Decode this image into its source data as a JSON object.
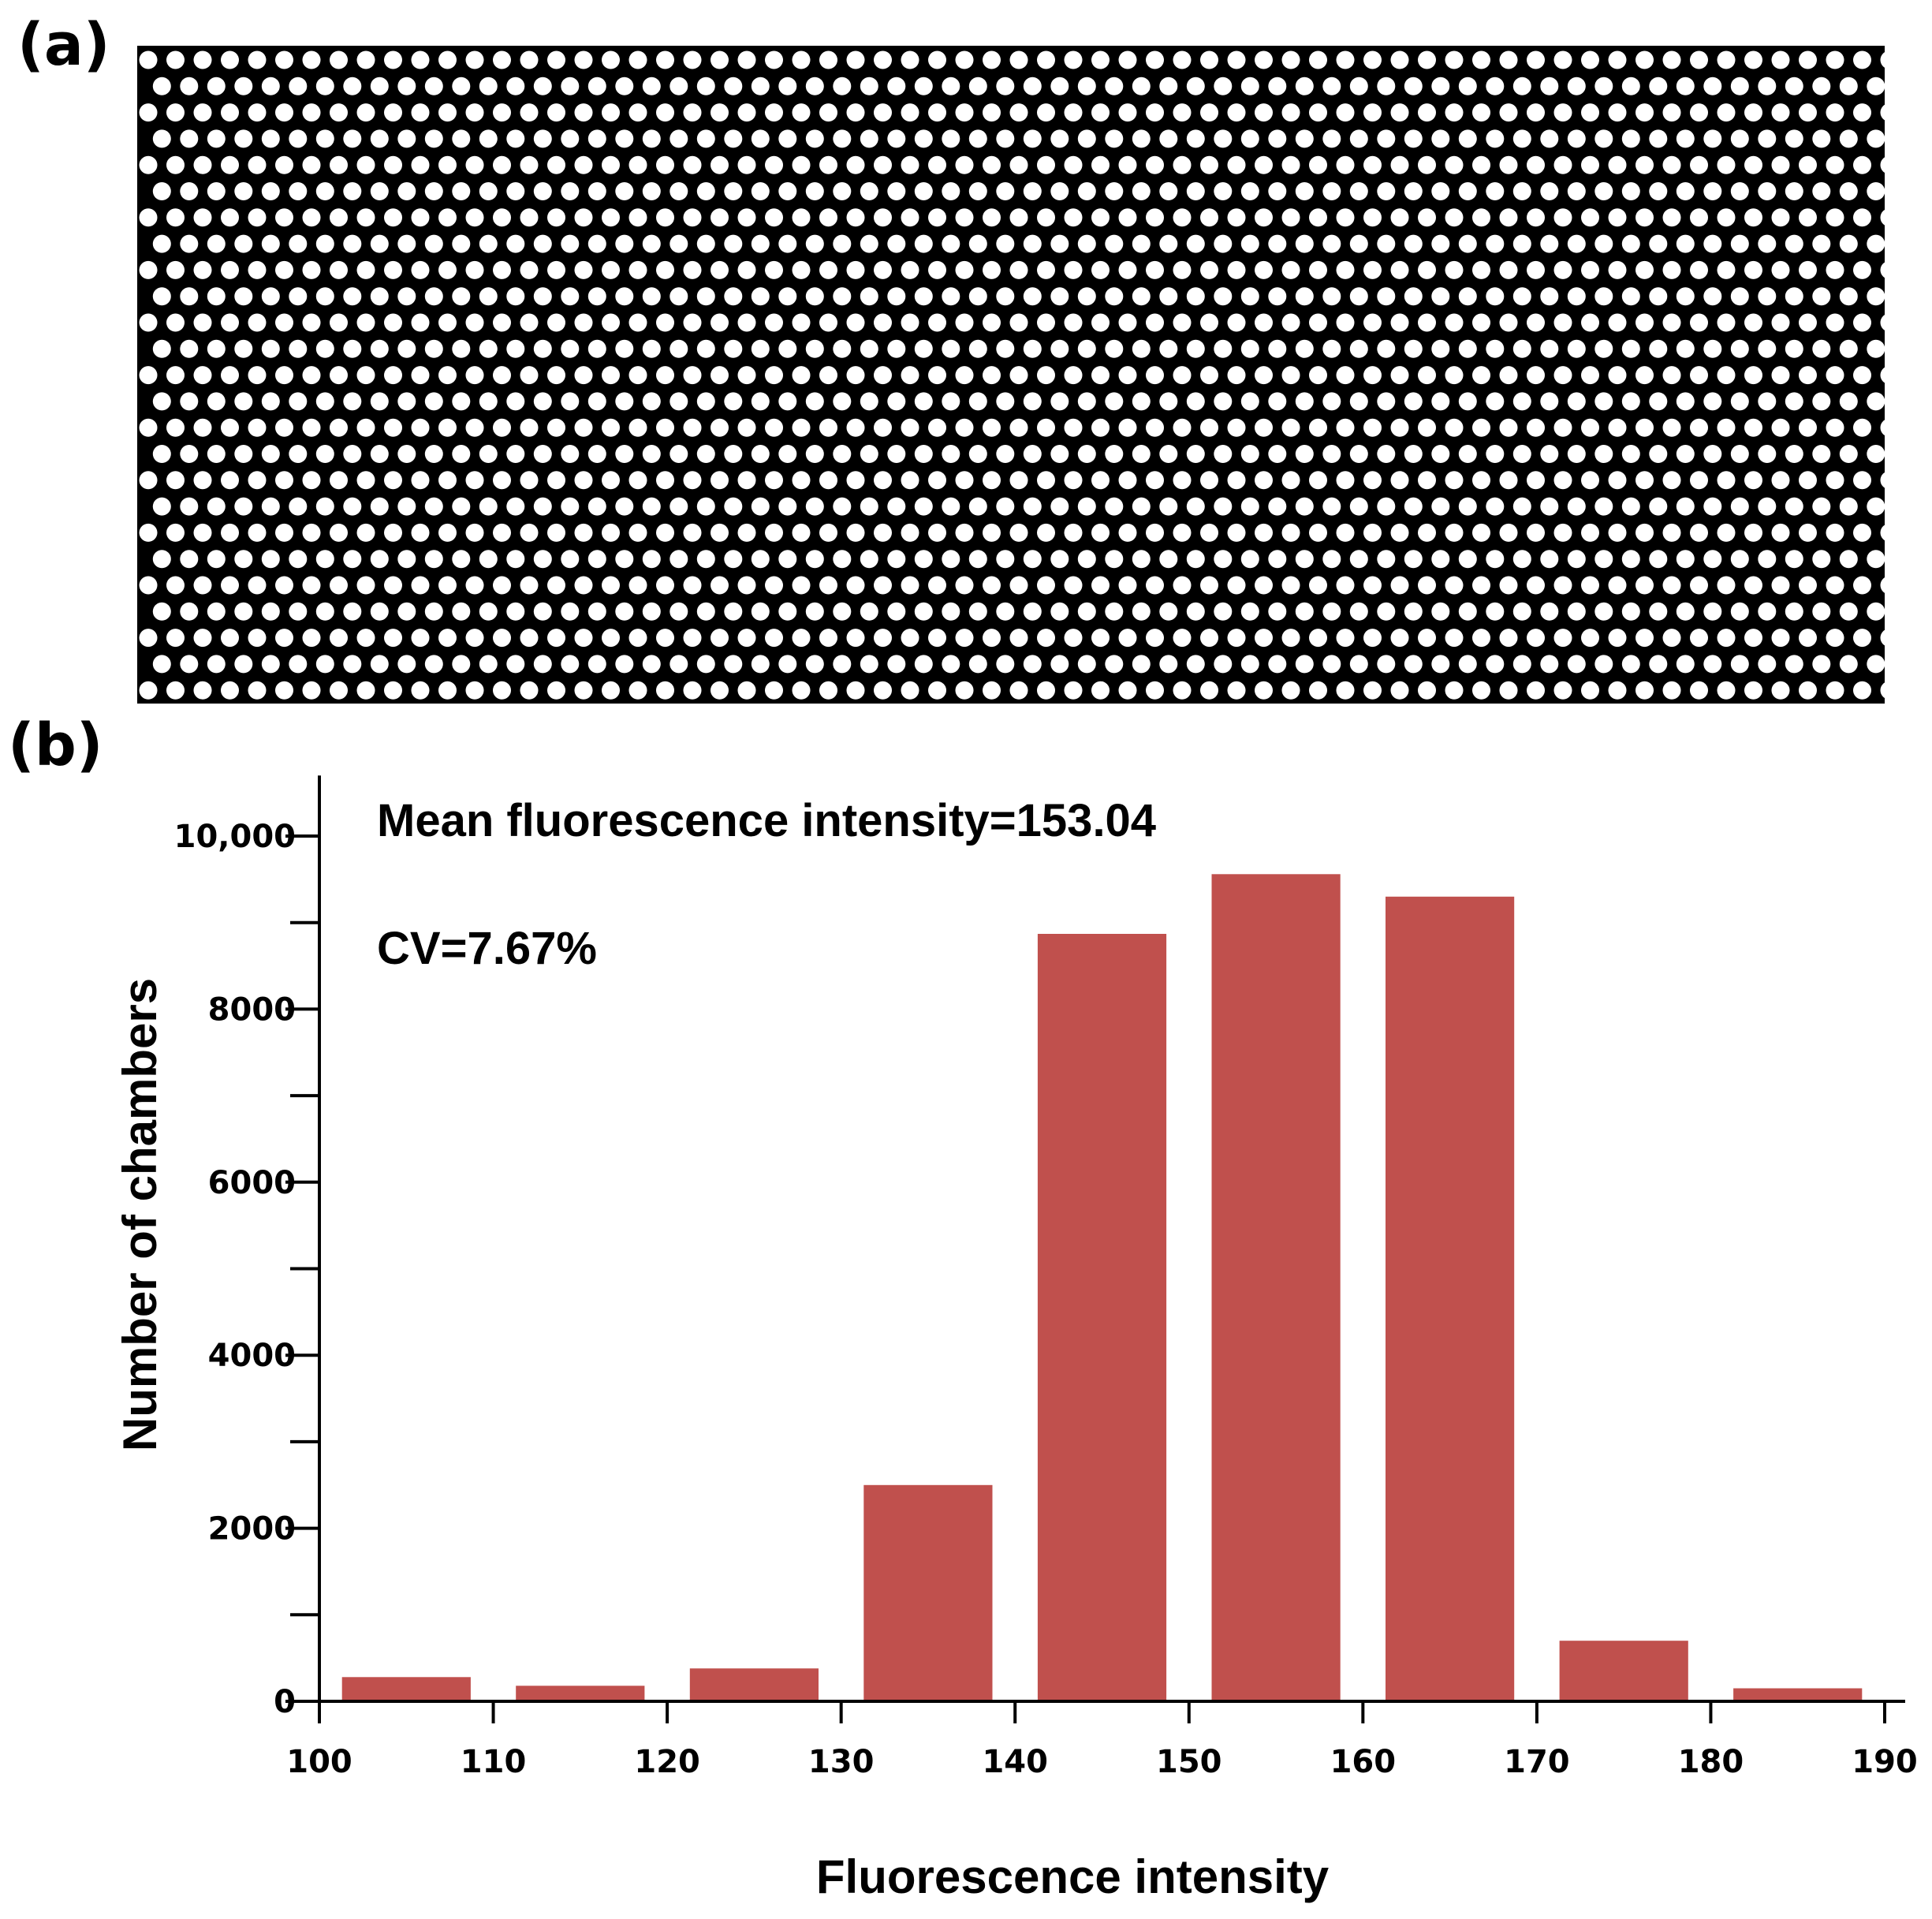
{
  "panels": {
    "a_label": "(a)",
    "b_label": "(b)"
  },
  "microscopy": {
    "background_color": "#000000",
    "dot_color": "#ffffff",
    "pattern": "hexagonal array of fluorescent chambers"
  },
  "chart_data": {
    "type": "bar",
    "xlabel": "Fluorescence intensity",
    "ylabel": "Number of chambers",
    "annotations": [
      "Mean fluorescence intensity=153.04",
      "CV=7.67%"
    ],
    "x_ticks": [
      100,
      110,
      120,
      130,
      140,
      150,
      160,
      170,
      180,
      190
    ],
    "y_ticks": [
      {
        "value": 0,
        "label": "0"
      },
      {
        "value": 2000,
        "label": "2000"
      },
      {
        "value": 4000,
        "label": "4000"
      },
      {
        "value": 6000,
        "label": "6000"
      },
      {
        "value": 8000,
        "label": "8000"
      },
      {
        "value": 10000,
        "label": "10,000"
      }
    ],
    "y_minor_ticks": [
      1000,
      3000,
      5000,
      7000,
      9000
    ],
    "xlim": [
      100,
      190
    ],
    "ylim": [
      0,
      10700
    ],
    "bins": [
      {
        "start": 100,
        "end": 110,
        "value": 280
      },
      {
        "start": 110,
        "end": 120,
        "value": 180
      },
      {
        "start": 120,
        "end": 130,
        "value": 380
      },
      {
        "start": 130,
        "end": 140,
        "value": 2500
      },
      {
        "start": 140,
        "end": 150,
        "value": 8870
      },
      {
        "start": 150,
        "end": 160,
        "value": 9560
      },
      {
        "start": 160,
        "end": 170,
        "value": 9300
      },
      {
        "start": 170,
        "end": 180,
        "value": 700
      },
      {
        "start": 180,
        "end": 190,
        "value": 150
      }
    ],
    "bar_color": "#c0504d",
    "grid": false
  }
}
